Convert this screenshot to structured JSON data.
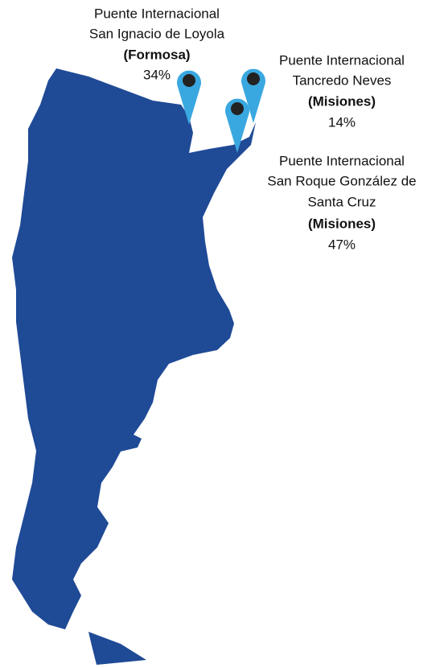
{
  "markers": [
    {
      "name": [
        "Puente Internacional",
        "San Ignacio de Loyola"
      ],
      "province": "(Formosa)",
      "share": "34%"
    },
    {
      "name": [
        "Puente Internacional",
        "Tancredo Neves"
      ],
      "province": "(Misiones)",
      "share": "14%"
    },
    {
      "name": [
        "Puente Internacional",
        "San Roque González de",
        "Santa Cruz"
      ],
      "province": "(Misiones)",
      "share": "47%"
    }
  ]
}
